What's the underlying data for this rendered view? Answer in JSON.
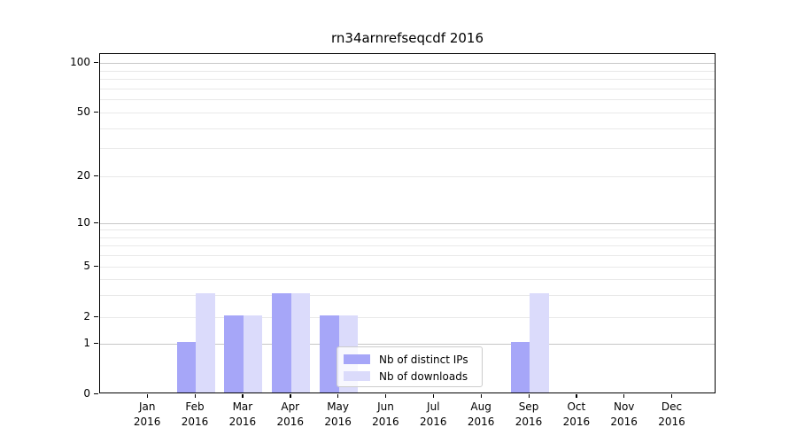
{
  "title": "rn34arnrefseqcdf 2016",
  "chart_data": {
    "type": "bar",
    "title": "rn34arnrefseqcdf 2016",
    "categories": [
      "Jan 2016",
      "Feb 2016",
      "Mar 2016",
      "Apr 2016",
      "May 2016",
      "Jun 2016",
      "Jul 2016",
      "Aug 2016",
      "Sep 2016",
      "Oct 2016",
      "Nov 2016",
      "Dec 2016"
    ],
    "series": [
      {
        "name": "Nb of distinct IPs",
        "color": "#a6a6f8",
        "values": [
          0,
          1,
          2,
          3,
          2,
          0,
          0,
          0,
          1,
          0,
          0,
          0
        ]
      },
      {
        "name": "Nb of downloads",
        "color": "#dbdbfb",
        "values": [
          0,
          3,
          2,
          3,
          2,
          0,
          0,
          0,
          3,
          0,
          0,
          0
        ]
      }
    ],
    "yscale": "symlog",
    "yticks": [
      0,
      1,
      2,
      5,
      10,
      20,
      50,
      100
    ],
    "yticks_minor": [
      3,
      4,
      6,
      7,
      8,
      9,
      30,
      40,
      60,
      70,
      80,
      90
    ],
    "ylim": [
      0,
      115
    ],
    "xlabel": "",
    "ylabel": "",
    "grid": true,
    "legend_position": "lower center-right"
  },
  "colors": {
    "grid_decade": "#c7c7c7",
    "grid_light": "#e9e9e9",
    "spine": "#000000",
    "legend_border": "#cccccc",
    "legend_bg": "rgba(255,255,255,0.8)"
  }
}
